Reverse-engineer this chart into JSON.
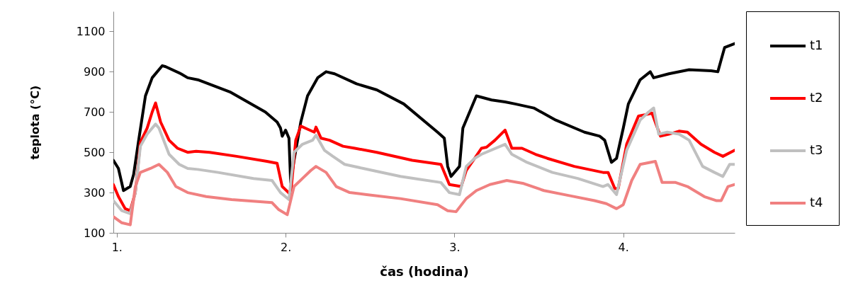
{
  "chart_data": {
    "type": "line",
    "xlabel": "čas (hodina)",
    "ylabel": "teplota (°C)",
    "xlim": [
      0.98,
      4.66
    ],
    "xticks": [
      {
        "value": 1,
        "label": "1."
      },
      {
        "value": 2,
        "label": "2."
      },
      {
        "value": 3,
        "label": "3."
      },
      {
        "value": 4,
        "label": "4."
      }
    ],
    "ylim": [
      100,
      1200
    ],
    "yticks": [
      100,
      300,
      500,
      700,
      900,
      1100
    ],
    "grid": false,
    "legend": "right",
    "marker": "none",
    "line_style": "solid",
    "series": [
      {
        "name": "t1",
        "color": "#000000",
        "x": [
          0.98,
          1.01,
          1.04,
          1.08,
          1.1,
          1.13,
          1.17,
          1.21,
          1.27,
          1.29,
          1.38,
          1.42,
          1.48,
          1.67,
          1.88,
          1.95,
          1.97,
          1.98,
          2.0,
          2.02,
          2.03,
          2.05,
          2.09,
          2.13,
          2.19,
          2.24,
          2.29,
          2.42,
          2.54,
          2.7,
          2.9,
          2.94,
          2.96,
          2.98,
          3.03,
          3.05,
          3.09,
          3.13,
          3.22,
          3.3,
          3.36,
          3.47,
          3.6,
          3.77,
          3.86,
          3.89,
          3.93,
          3.96,
          4.0,
          4.03,
          4.1,
          4.16,
          4.18,
          4.27,
          4.39,
          4.52,
          4.56,
          4.58,
          4.6,
          4.66
        ],
        "values": [
          460,
          420,
          310,
          330,
          390,
          560,
          780,
          870,
          930,
          925,
          890,
          870,
          860,
          800,
          700,
          650,
          620,
          580,
          610,
          570,
          350,
          460,
          650,
          780,
          870,
          900,
          890,
          840,
          810,
          740,
          600,
          570,
          430,
          380,
          430,
          620,
          700,
          780,
          760,
          750,
          740,
          720,
          660,
          600,
          580,
          560,
          450,
          470,
          620,
          740,
          860,
          900,
          870,
          890,
          910,
          905,
          900,
          960,
          1020,
          1040
        ]
      },
      {
        "name": "t2",
        "color": "#ff0000",
        "x": [
          0.98,
          1.01,
          1.05,
          1.08,
          1.11,
          1.14,
          1.18,
          1.21,
          1.23,
          1.26,
          1.31,
          1.36,
          1.42,
          1.47,
          1.55,
          1.71,
          1.89,
          1.95,
          1.98,
          2.03,
          2.06,
          2.09,
          2.13,
          2.17,
          2.18,
          2.21,
          2.26,
          2.34,
          2.41,
          2.54,
          2.75,
          2.92,
          2.97,
          3.04,
          3.07,
          3.12,
          3.16,
          3.19,
          3.24,
          3.3,
          3.34,
          3.4,
          3.48,
          3.55,
          3.71,
          3.88,
          3.91,
          3.95,
          3.97,
          4.02,
          4.09,
          4.15,
          4.17,
          4.22,
          4.27,
          4.33,
          4.38,
          4.46,
          4.54,
          4.59,
          4.66
        ],
        "values": [
          340,
          280,
          220,
          210,
          300,
          550,
          620,
          700,
          745,
          650,
          560,
          520,
          500,
          505,
          500,
          480,
          455,
          445,
          330,
          290,
          560,
          630,
          615,
          600,
          625,
          570,
          560,
          530,
          520,
          500,
          460,
          440,
          340,
          330,
          410,
          470,
          520,
          525,
          560,
          610,
          520,
          520,
          490,
          470,
          430,
          400,
          400,
          320,
          320,
          540,
          680,
          690,
          695,
          580,
          590,
          605,
          600,
          540,
          500,
          480,
          510
        ]
      },
      {
        "name": "t3",
        "color": "#c0c0c0",
        "x": [
          0.98,
          1.03,
          1.08,
          1.11,
          1.14,
          1.18,
          1.23,
          1.25,
          1.31,
          1.37,
          1.42,
          1.48,
          1.6,
          1.81,
          1.92,
          1.97,
          2.02,
          2.05,
          2.1,
          2.16,
          2.18,
          2.23,
          2.28,
          2.35,
          2.46,
          2.68,
          2.92,
          2.97,
          3.03,
          3.07,
          3.12,
          3.16,
          3.3,
          3.34,
          3.43,
          3.58,
          3.73,
          3.88,
          3.91,
          3.96,
          4.02,
          4.1,
          4.15,
          4.18,
          4.21,
          4.26,
          4.33,
          4.39,
          4.47,
          4.54,
          4.59,
          4.63,
          4.66
        ],
        "values": [
          260,
          210,
          195,
          300,
          530,
          590,
          640,
          620,
          490,
          440,
          420,
          415,
          400,
          370,
          360,
          300,
          265,
          500,
          540,
          560,
          585,
          510,
          480,
          440,
          420,
          380,
          350,
          300,
          290,
          430,
          470,
          490,
          540,
          490,
          450,
          400,
          370,
          330,
          340,
          290,
          510,
          660,
          700,
          720,
          590,
          600,
          590,
          560,
          430,
          400,
          380,
          440,
          440
        ]
      },
      {
        "name": "t4",
        "color": "#f08080",
        "x": [
          0.98,
          1.03,
          1.08,
          1.11,
          1.14,
          1.2,
          1.25,
          1.3,
          1.35,
          1.42,
          1.53,
          1.68,
          1.92,
          1.96,
          2.01,
          2.05,
          2.1,
          2.15,
          2.18,
          2.24,
          2.3,
          2.38,
          2.48,
          2.68,
          2.9,
          2.96,
          3.01,
          3.07,
          3.13,
          3.21,
          3.31,
          3.41,
          3.53,
          3.68,
          3.83,
          3.9,
          3.96,
          4.0,
          4.05,
          4.1,
          4.19,
          4.23,
          4.31,
          4.38,
          4.48,
          4.55,
          4.58,
          4.62,
          4.66
        ],
        "values": [
          180,
          150,
          140,
          330,
          400,
          420,
          440,
          400,
          330,
          300,
          280,
          265,
          250,
          215,
          190,
          330,
          370,
          410,
          430,
          400,
          330,
          300,
          290,
          270,
          240,
          210,
          205,
          270,
          310,
          340,
          360,
          345,
          310,
          285,
          260,
          245,
          220,
          240,
          360,
          440,
          455,
          350,
          350,
          330,
          280,
          260,
          260,
          330,
          340
        ]
      }
    ]
  }
}
